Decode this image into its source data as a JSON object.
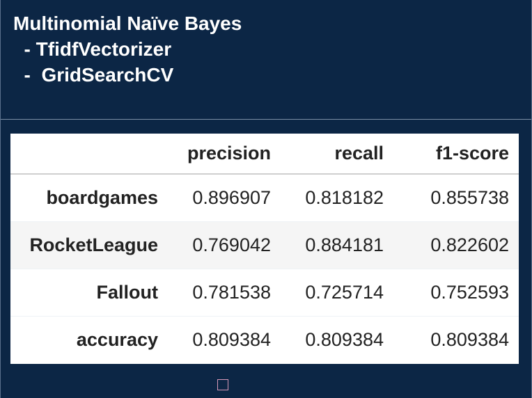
{
  "header": {
    "lines": [
      "Multinomial Naïve Bayes",
      "  - TfidfVectorizer",
      "  -  GridSearchCV"
    ]
  },
  "table": {
    "columns": [
      "precision",
      "recall",
      "f1-score"
    ],
    "rows": [
      [
        "boardgames",
        "0.896907",
        "0.818182",
        "0.855738"
      ],
      [
        "RocketLeague",
        "0.769042",
        "0.884181",
        "0.822602"
      ],
      [
        "Fallout",
        "0.781538",
        "0.725714",
        "0.752593"
      ],
      [
        "accuracy",
        "0.809384",
        "0.809384",
        "0.809384"
      ]
    ]
  }
}
